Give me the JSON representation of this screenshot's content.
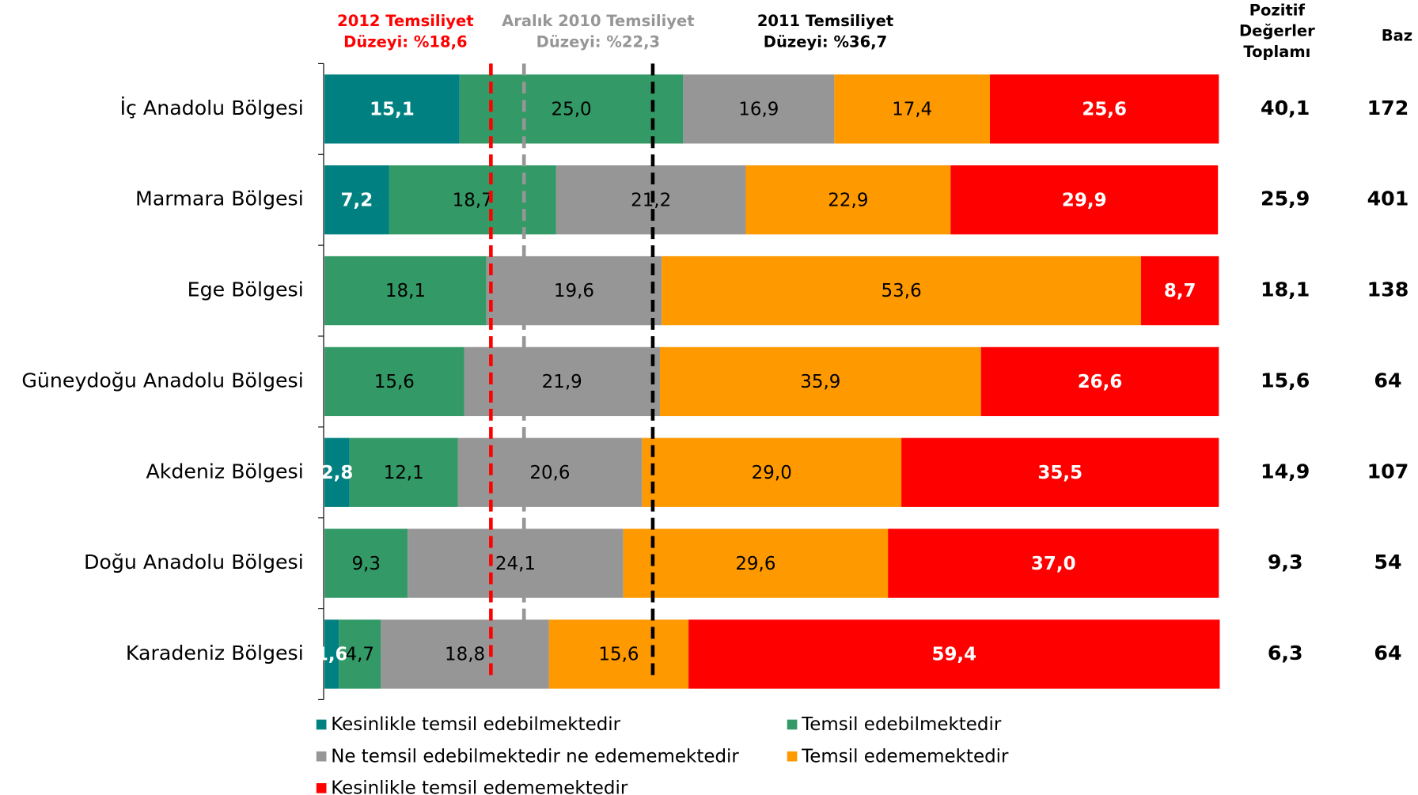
{
  "chart_data": {
    "type": "stacked-bar-horizontal",
    "categories": [
      "İç Anadolu Bölgesi",
      "Marmara Bölgesi",
      "Ege Bölgesi",
      "Güneydoğu Anadolu Bölgesi",
      "Akdeniz Bölgesi",
      "Doğu Anadolu Bölgesi",
      "Karadeniz Bölgesi"
    ],
    "xlim": [
      0,
      100
    ],
    "series": [
      {
        "name": "Kesinlikle temsil edebilmektedir",
        "color": "#008080",
        "label_color": "#ffffff",
        "values": [
          15.1,
          7.2,
          null,
          null,
          2.8,
          null,
          1.6
        ],
        "value_labels": [
          "15,1",
          "7,2",
          null,
          null,
          "2,8",
          null,
          "1,6"
        ]
      },
      {
        "name": "Temsil edebilmektedir",
        "color": "#339966",
        "label_color": "#000000",
        "values": [
          25.0,
          18.7,
          18.1,
          15.6,
          12.1,
          9.3,
          4.7
        ],
        "value_labels": [
          "25,0",
          "18,7",
          "18,1",
          "15,6",
          "12,1",
          "9,3",
          "4,7"
        ]
      },
      {
        "name": "Ne temsil edebilmektedir ne edememektedir",
        "color": "#969696",
        "label_color": "#000000",
        "values": [
          16.9,
          21.2,
          19.6,
          21.9,
          20.6,
          24.1,
          18.8
        ],
        "value_labels": [
          "16,9",
          "21,2",
          "19,6",
          "21,9",
          "20,6",
          "24,1",
          "18,8"
        ]
      },
      {
        "name": "Temsil edememektedir",
        "color": "#ff9900",
        "label_color": "#000000",
        "values": [
          17.4,
          22.9,
          53.6,
          35.9,
          29.0,
          29.6,
          15.6
        ],
        "value_labels": [
          "17,4",
          "22,9",
          "53,6",
          "35,9",
          "29,0",
          "29,6",
          "15,6"
        ]
      },
      {
        "name": "Kesinlikle temsil edememektedir",
        "color": "#ff0000",
        "label_color": "#ffffff",
        "values": [
          25.6,
          29.9,
          8.7,
          26.6,
          35.5,
          37.0,
          59.4
        ],
        "value_labels": [
          "25,6",
          "29,9",
          "8,7",
          "26,6",
          "35,5",
          "37,0",
          "59,4"
        ]
      }
    ],
    "reference_lines": [
      {
        "label": [
          "2012 Temsiliyet",
          "Düzeyi: %18,6"
        ],
        "value": 18.6,
        "color": "#ff0000"
      },
      {
        "label": [
          "Aralık 2010 Temsiliyet",
          "Düzeyi: %22,3"
        ],
        "value": 22.3,
        "color": "#969696"
      },
      {
        "label": [
          "2011 Temsiliyet",
          "Düzeyi: %36,7"
        ],
        "value": 36.7,
        "color": "#000000"
      }
    ],
    "columns": [
      {
        "header": [
          "Pozitif",
          "Değerler",
          "Toplamı"
        ],
        "values": [
          40.1,
          25.9,
          18.1,
          15.6,
          14.9,
          9.3,
          6.3
        ],
        "value_labels": [
          "40,1",
          "25,9",
          "18,1",
          "15,6",
          "14,9",
          "9,3",
          "6,3"
        ]
      },
      {
        "header": [
          "Baz"
        ],
        "values": [
          172,
          401,
          138,
          64,
          107,
          54,
          64
        ]
      }
    ]
  }
}
